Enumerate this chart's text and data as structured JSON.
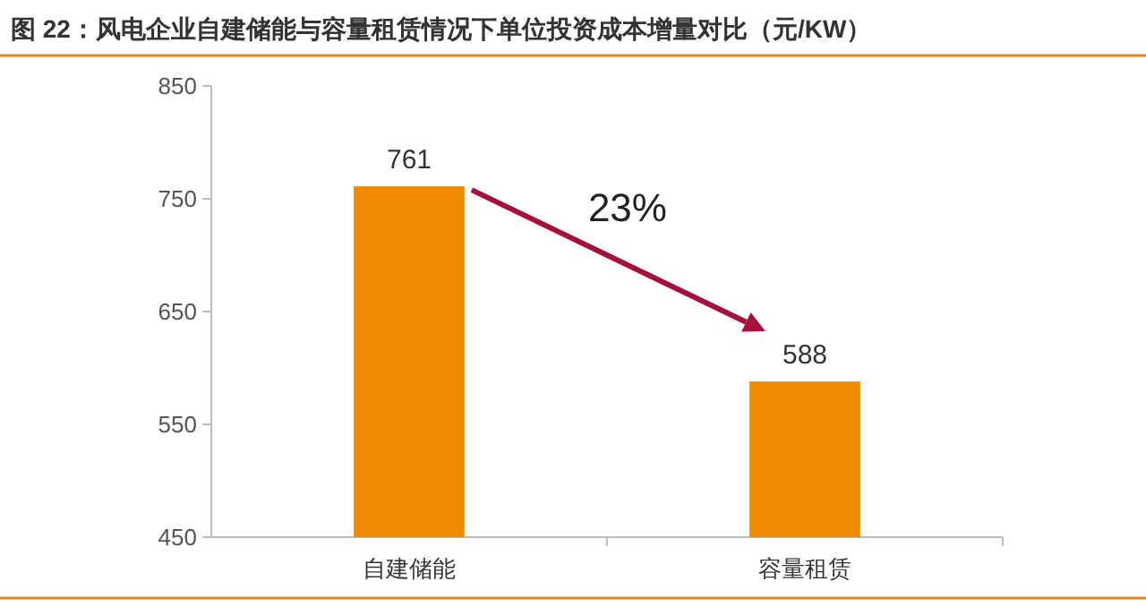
{
  "chart_data": {
    "type": "bar",
    "title": "图 22：风电企业自建储能与容量租赁情况下单位投资成本增量对比（元/KW）",
    "categories": [
      "自建储能",
      "容量租赁"
    ],
    "values": [
      761,
      588
    ],
    "color": "#f08a00",
    "ylim": [
      450,
      850
    ],
    "yticks": [
      450,
      550,
      650,
      750,
      850
    ],
    "data_labels": true,
    "annotations": [
      "23%"
    ]
  }
}
